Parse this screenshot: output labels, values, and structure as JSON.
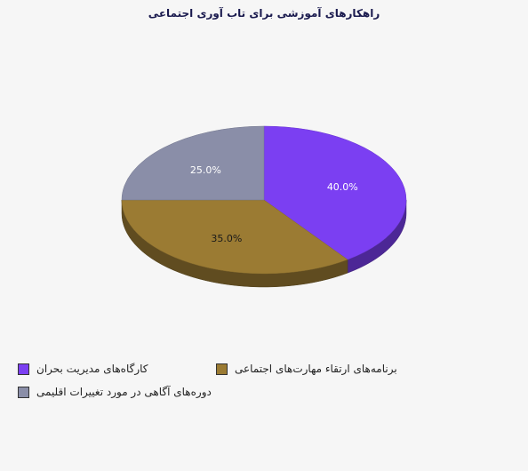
{
  "chart_data": {
    "type": "pie",
    "title": "راهکارهای آموزشی برای تاب آوری اجتماعی",
    "slices": [
      {
        "label": "کارگاه‌های مدیریت بحران",
        "value": 40.0,
        "display": "40.0%",
        "color": "#7b3ff2"
      },
      {
        "label": "برنامه‌های ارتقاء مهارت‌های اجتماعی",
        "value": 35.0,
        "display": "35.0%",
        "color": "#9b7b33"
      },
      {
        "label": "دوره‌های آگاهی در مورد تغییرات اقلیمی",
        "value": 25.0,
        "display": "25.0%",
        "color": "#8a8ea8"
      }
    ],
    "legend_position": "bottom"
  }
}
